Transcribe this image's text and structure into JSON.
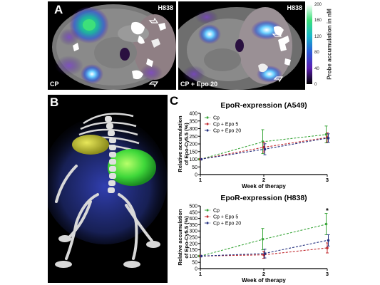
{
  "panel_a": {
    "letter": "A",
    "left_image": {
      "cell_line": "H838",
      "condition": "CP"
    },
    "right_image": {
      "cell_line": "H838",
      "condition": "CP + Epo 20"
    },
    "colorbar": {
      "label": "Probe accumulation in nM",
      "ticks": [
        "200",
        "160",
        "120",
        "80",
        "40",
        "0"
      ],
      "colors": [
        "#ffffff",
        "#3de07a",
        "#18b7c9",
        "#2a5ad8",
        "#5a1db0",
        "#000000"
      ]
    }
  },
  "panel_b": {
    "letter": "B"
  },
  "panel_c": {
    "letter": "C"
  },
  "chart_data": [
    {
      "type": "line",
      "title": "EpoR-expression (A549)",
      "xlabel": "Week of therapy",
      "ylabel": "Relative accumulation of Epo-Cy5.5 (%)",
      "x": [
        1,
        2,
        3
      ],
      "xticks": [
        "1",
        "2",
        "3"
      ],
      "ylim": [
        0,
        400
      ],
      "yticks": [
        "0",
        "50",
        "100",
        "150",
        "200",
        "250",
        "300",
        "350",
        "400"
      ],
      "legend_position": "top-left",
      "series": [
        {
          "name": "Cp",
          "color": "#3aa63a",
          "values": [
            100,
            215,
            262
          ],
          "errors": [
            0,
            78,
            55
          ]
        },
        {
          "name": "Cp + Epo 5",
          "color": "#c0282d",
          "values": [
            100,
            178,
            242
          ],
          "errors": [
            0,
            32,
            30
          ]
        },
        {
          "name": "Cp + Epo 20",
          "color": "#24307f",
          "values": [
            100,
            165,
            238
          ],
          "errors": [
            0,
            36,
            28
          ]
        }
      ]
    },
    {
      "type": "line",
      "title": "EpoR-expression (H838)",
      "xlabel": "Week of therapy",
      "ylabel": "Relative accumulation of Epo-Cy5.5 (%)",
      "x": [
        1,
        2,
        3
      ],
      "xticks": [
        "1",
        "2",
        "3"
      ],
      "ylim": [
        0,
        500
      ],
      "yticks": [
        "0",
        "50",
        "100",
        "150",
        "200",
        "250",
        "300",
        "350",
        "400",
        "450",
        "500"
      ],
      "legend_position": "top-left",
      "annotation": "*",
      "series": [
        {
          "name": "Cp",
          "color": "#3aa63a",
          "values": [
            100,
            235,
            355
          ],
          "errors": [
            0,
            85,
            85
          ]
        },
        {
          "name": "Cp + Epo 5",
          "color": "#c0282d",
          "values": [
            100,
            110,
            165
          ],
          "errors": [
            0,
            28,
            40
          ]
        },
        {
          "name": "Cp + Epo 20",
          "color": "#24307f",
          "values": [
            100,
            120,
            225
          ],
          "errors": [
            0,
            35,
            45
          ]
        }
      ]
    }
  ]
}
